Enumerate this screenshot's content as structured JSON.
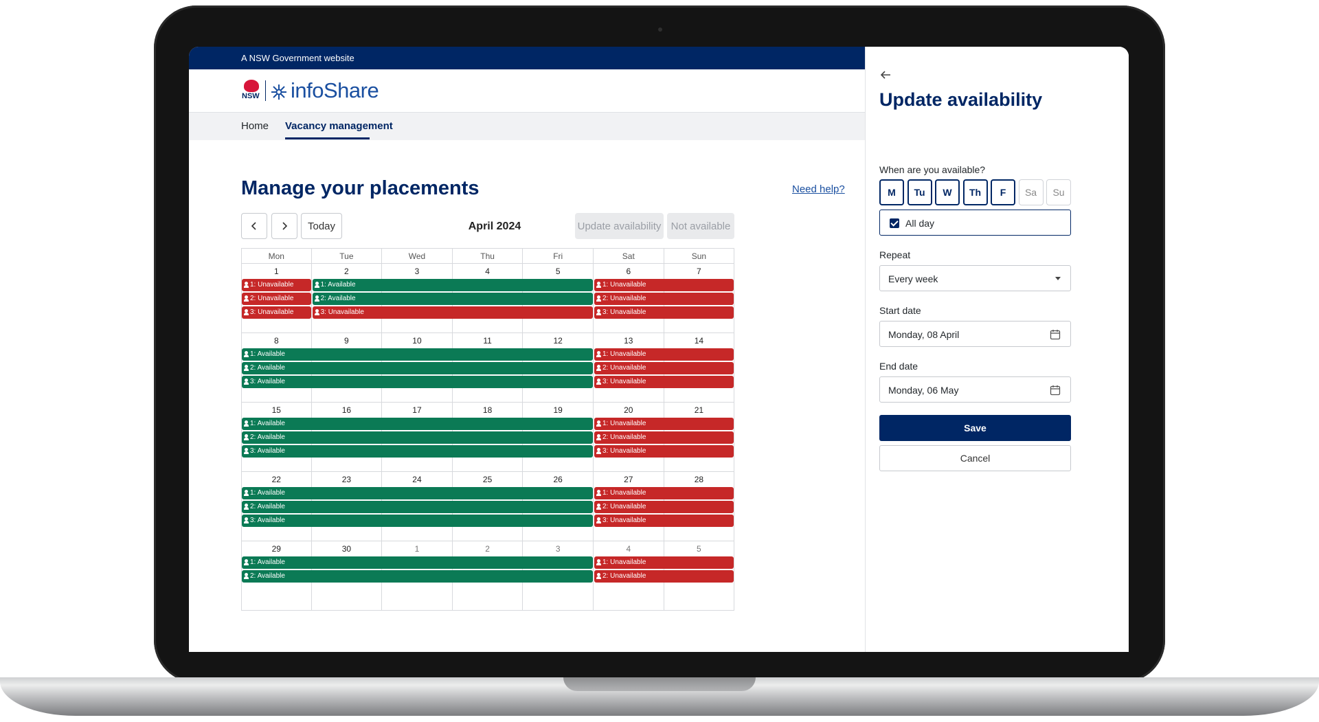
{
  "gov_bar": {
    "text": "A NSW Government website"
  },
  "brand": {
    "nsw_logo_text": "NSW",
    "name": "infoShare"
  },
  "nav": {
    "items": [
      "Home",
      "Vacancy management"
    ],
    "active": "Vacancy management"
  },
  "page": {
    "title": "Manage your placements",
    "help_link": "Need help?",
    "today_button": "Today",
    "month": "April 2024",
    "update_availability_button": "Update availability",
    "not_available_button": "Not available"
  },
  "calendar": {
    "weekdays": [
      "Mon",
      "Tue",
      "Wed",
      "Thu",
      "Fri",
      "Sat",
      "Sun"
    ],
    "weeks": [
      {
        "days": [
          "1",
          "2",
          "3",
          "4",
          "5",
          "6",
          "7"
        ],
        "other_month": [
          false,
          false,
          false,
          false,
          false,
          false,
          false
        ],
        "bars": [
          {
            "start": 0,
            "span": 1,
            "slot": 0,
            "status": "unavailable",
            "label": "1: Unavailable"
          },
          {
            "start": 0,
            "span": 1,
            "slot": 1,
            "status": "unavailable",
            "label": "2: Unavailable"
          },
          {
            "start": 0,
            "span": 1,
            "slot": 2,
            "status": "unavailable",
            "label": "3: Unavailable"
          },
          {
            "start": 1,
            "span": 4,
            "slot": 0,
            "status": "available",
            "label": "1: Available"
          },
          {
            "start": 1,
            "span": 4,
            "slot": 1,
            "status": "available",
            "label": "2: Available"
          },
          {
            "start": 1,
            "span": 4,
            "slot": 2,
            "status": "unavailable",
            "label": "3: Unavailable"
          },
          {
            "start": 5,
            "span": 2,
            "slot": 0,
            "status": "unavailable",
            "label": "1: Unavailable"
          },
          {
            "start": 5,
            "span": 2,
            "slot": 1,
            "status": "unavailable",
            "label": "2: Unavailable"
          },
          {
            "start": 5,
            "span": 2,
            "slot": 2,
            "status": "unavailable",
            "label": "3: Unavailable"
          }
        ]
      },
      {
        "days": [
          "8",
          "9",
          "10",
          "11",
          "12",
          "13",
          "14"
        ],
        "other_month": [
          false,
          false,
          false,
          false,
          false,
          false,
          false
        ],
        "bars": [
          {
            "start": 0,
            "span": 5,
            "slot": 0,
            "status": "available",
            "label": "1: Available"
          },
          {
            "start": 0,
            "span": 5,
            "slot": 1,
            "status": "available",
            "label": "2: Available"
          },
          {
            "start": 0,
            "span": 5,
            "slot": 2,
            "status": "available",
            "label": "3: Available"
          },
          {
            "start": 5,
            "span": 2,
            "slot": 0,
            "status": "unavailable",
            "label": "1: Unavailable"
          },
          {
            "start": 5,
            "span": 2,
            "slot": 1,
            "status": "unavailable",
            "label": "2: Unavailable"
          },
          {
            "start": 5,
            "span": 2,
            "slot": 2,
            "status": "unavailable",
            "label": "3: Unavailable"
          }
        ]
      },
      {
        "days": [
          "15",
          "16",
          "17",
          "18",
          "19",
          "20",
          "21"
        ],
        "other_month": [
          false,
          false,
          false,
          false,
          false,
          false,
          false
        ],
        "bars": [
          {
            "start": 0,
            "span": 5,
            "slot": 0,
            "status": "available",
            "label": "1: Available"
          },
          {
            "start": 0,
            "span": 5,
            "slot": 1,
            "status": "available",
            "label": "2: Available"
          },
          {
            "start": 0,
            "span": 5,
            "slot": 2,
            "status": "available",
            "label": "3: Available"
          },
          {
            "start": 5,
            "span": 2,
            "slot": 0,
            "status": "unavailable",
            "label": "1: Unavailable"
          },
          {
            "start": 5,
            "span": 2,
            "slot": 1,
            "status": "unavailable",
            "label": "2: Unavailable"
          },
          {
            "start": 5,
            "span": 2,
            "slot": 2,
            "status": "unavailable",
            "label": "3: Unavailable"
          }
        ]
      },
      {
        "days": [
          "22",
          "23",
          "24",
          "25",
          "26",
          "27",
          "28"
        ],
        "other_month": [
          false,
          false,
          false,
          false,
          false,
          false,
          false
        ],
        "bars": [
          {
            "start": 0,
            "span": 5,
            "slot": 0,
            "status": "available",
            "label": "1: Available"
          },
          {
            "start": 0,
            "span": 5,
            "slot": 1,
            "status": "available",
            "label": "2: Available"
          },
          {
            "start": 0,
            "span": 5,
            "slot": 2,
            "status": "available",
            "label": "3: Available"
          },
          {
            "start": 5,
            "span": 2,
            "slot": 0,
            "status": "unavailable",
            "label": "1: Unavailable"
          },
          {
            "start": 5,
            "span": 2,
            "slot": 1,
            "status": "unavailable",
            "label": "2: Unavailable"
          },
          {
            "start": 5,
            "span": 2,
            "slot": 2,
            "status": "unavailable",
            "label": "3: Unavailable"
          }
        ]
      },
      {
        "days": [
          "29",
          "30",
          "1",
          "2",
          "3",
          "4",
          "5"
        ],
        "other_month": [
          false,
          false,
          true,
          true,
          true,
          true,
          true
        ],
        "bars": [
          {
            "start": 0,
            "span": 5,
            "slot": 0,
            "status": "available",
            "label": "1: Available"
          },
          {
            "start": 0,
            "span": 5,
            "slot": 1,
            "status": "available",
            "label": "2: Available"
          },
          {
            "start": 5,
            "span": 2,
            "slot": 0,
            "status": "unavailable",
            "label": "1: Unavailable"
          },
          {
            "start": 5,
            "span": 2,
            "slot": 1,
            "status": "unavailable",
            "label": "2: Unavailable"
          }
        ]
      }
    ]
  },
  "panel": {
    "title": "Update availability",
    "days_label": "When are you available?",
    "days": [
      {
        "label": "M",
        "selected": true
      },
      {
        "label": "Tu",
        "selected": true
      },
      {
        "label": "W",
        "selected": true
      },
      {
        "label": "Th",
        "selected": true
      },
      {
        "label": "F",
        "selected": true
      },
      {
        "label": "Sa",
        "selected": false
      },
      {
        "label": "Su",
        "selected": false
      }
    ],
    "all_day_label": "All day",
    "all_day_checked": true,
    "repeat_label": "Repeat",
    "repeat_value": "Every week",
    "start_date_label": "Start date",
    "start_date_value": "Monday, 08 April",
    "end_date_label": "End date",
    "end_date_value": "Monday, 06 May",
    "save_button": "Save",
    "cancel_button": "Cancel"
  },
  "colors": {
    "navy": "#002664",
    "available": "#0b7a55",
    "unavailable": "#c62828",
    "brand_blue": "#1a4fa0"
  }
}
